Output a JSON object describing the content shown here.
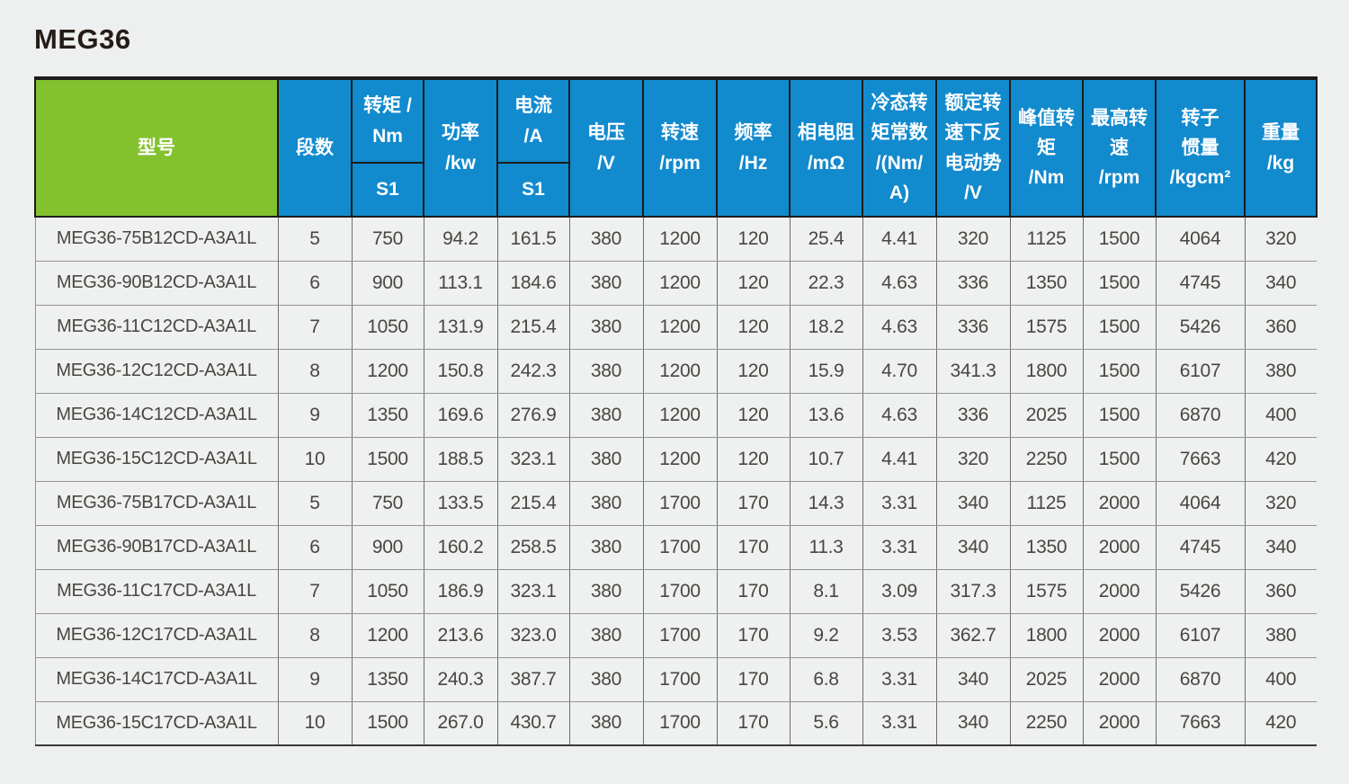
{
  "page": {
    "title": "MEG36"
  },
  "colors": {
    "header_green": "#84c12f",
    "header_blue": "#128ace",
    "header_text": "#ffffff",
    "body_text": "#4b4541",
    "background": "#edf0ef",
    "border_dark": "#1d1c1a",
    "border_light": "#94948f"
  },
  "table": {
    "header": {
      "model": "型号",
      "segments": "段数",
      "torque": "转矩 /\nNm",
      "torque_sub": "S1",
      "power": "功率\n/kw",
      "current": "电流\n/A",
      "current_sub": "S1",
      "voltage": "电压\n/V",
      "speed": "转速\n/rpm",
      "frequency": "频率\n/Hz",
      "phase_resistance": "相电阻\n/mΩ",
      "cold_torque_constant": "冷态转\n矩常数\n/(Nm/\nA)",
      "rated_back_emf": "额定转\n速下反\n电动势\n/V",
      "peak_torque": "峰值转\n矩\n/Nm",
      "max_speed": "最高转\n速\n/rpm",
      "rotor_inertia": "转子\n惯量\n/kgcm²",
      "weight": "重量\n/kg"
    },
    "column_keys": [
      "model",
      "segments",
      "torque_nm_s1",
      "power_kw",
      "current_a_s1",
      "voltage_v",
      "speed_rpm",
      "frequency_hz",
      "phase_resistance_mohm",
      "cold_torque_constant_nm_per_a",
      "rated_back_emf_v",
      "peak_torque_nm",
      "max_speed_rpm",
      "rotor_inertia_kgcm2",
      "weight_kg"
    ],
    "rows": [
      [
        "MEG36-75B12CD-A3A1L",
        "5",
        "750",
        "94.2",
        "161.5",
        "380",
        "1200",
        "120",
        "25.4",
        "4.41",
        "320",
        "1125",
        "1500",
        "4064",
        "320"
      ],
      [
        "MEG36-90B12CD-A3A1L",
        "6",
        "900",
        "113.1",
        "184.6",
        "380",
        "1200",
        "120",
        "22.3",
        "4.63",
        "336",
        "1350",
        "1500",
        "4745",
        "340"
      ],
      [
        "MEG36-11C12CD-A3A1L",
        "7",
        "1050",
        "131.9",
        "215.4",
        "380",
        "1200",
        "120",
        "18.2",
        "4.63",
        "336",
        "1575",
        "1500",
        "5426",
        "360"
      ],
      [
        "MEG36-12C12CD-A3A1L",
        "8",
        "1200",
        "150.8",
        "242.3",
        "380",
        "1200",
        "120",
        "15.9",
        "4.70",
        "341.3",
        "1800",
        "1500",
        "6107",
        "380"
      ],
      [
        "MEG36-14C12CD-A3A1L",
        "9",
        "1350",
        "169.6",
        "276.9",
        "380",
        "1200",
        "120",
        "13.6",
        "4.63",
        "336",
        "2025",
        "1500",
        "6870",
        "400"
      ],
      [
        "MEG36-15C12CD-A3A1L",
        "10",
        "1500",
        "188.5",
        "323.1",
        "380",
        "1200",
        "120",
        "10.7",
        "4.41",
        "320",
        "2250",
        "1500",
        "7663",
        "420"
      ],
      [
        "MEG36-75B17CD-A3A1L",
        "5",
        "750",
        "133.5",
        "215.4",
        "380",
        "1700",
        "170",
        "14.3",
        "3.31",
        "340",
        "1125",
        "2000",
        "4064",
        "320"
      ],
      [
        "MEG36-90B17CD-A3A1L",
        "6",
        "900",
        "160.2",
        "258.5",
        "380",
        "1700",
        "170",
        "11.3",
        "3.31",
        "340",
        "1350",
        "2000",
        "4745",
        "340"
      ],
      [
        "MEG36-11C17CD-A3A1L",
        "7",
        "1050",
        "186.9",
        "323.1",
        "380",
        "1700",
        "170",
        "8.1",
        "3.09",
        "317.3",
        "1575",
        "2000",
        "5426",
        "360"
      ],
      [
        "MEG36-12C17CD-A3A1L",
        "8",
        "1200",
        "213.6",
        "323.0",
        "380",
        "1700",
        "170",
        "9.2",
        "3.53",
        "362.7",
        "1800",
        "2000",
        "6107",
        "380"
      ],
      [
        "MEG36-14C17CD-A3A1L",
        "9",
        "1350",
        "240.3",
        "387.7",
        "380",
        "1700",
        "170",
        "6.8",
        "3.31",
        "340",
        "2025",
        "2000",
        "6870",
        "400"
      ],
      [
        "MEG36-15C17CD-A3A1L",
        "10",
        "1500",
        "267.0",
        "430.7",
        "380",
        "1700",
        "170",
        "5.6",
        "3.31",
        "340",
        "2250",
        "2000",
        "7663",
        "420"
      ]
    ]
  }
}
